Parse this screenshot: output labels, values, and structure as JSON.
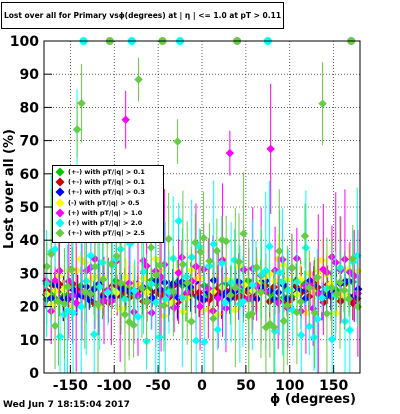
{
  "chart_data": {
    "type": "scatter",
    "title": "Lost over all for Primary vsϕ(degrees) at | η | <= 1.0 at pT > 0.11",
    "xlabel": "ϕ (degrees)",
    "ylabel": "Lost over all (%)",
    "xlim": [
      -180,
      180
    ],
    "ylim": [
      0,
      100
    ],
    "x_ticks": [
      -150,
      -100,
      -50,
      0,
      50,
      100,
      150
    ],
    "y_ticks": [
      0,
      10,
      20,
      30,
      40,
      50,
      60,
      70,
      80,
      90,
      100
    ],
    "grid": true,
    "legend_position": "left",
    "series": [
      {
        "name": "(+-) with pT/|q| > 0.1",
        "color": "#00c800",
        "baseline": 25
      },
      {
        "name": "(+-) with pT/|q| > 0.1",
        "color": "#cc0000",
        "baseline": 24
      },
      {
        "name": "(+-) with pT/|q| > 0.3",
        "color": "#0000ff",
        "baseline": 25
      },
      {
        "name": "(-) with pT/|q| > 0.5",
        "color": "#ffff00",
        "baseline": 26
      },
      {
        "name": "(+) with pT/|q| > 1.0",
        "color": "#ff00ff",
        "baseline": 26
      },
      {
        "name": "(+) with pT/|q| > 2.0",
        "color": "#00ffff",
        "baseline": 24
      },
      {
        "name": "(+-) with pT/|q| > 2.5",
        "color": "#66cc44",
        "baseline": 27
      }
    ]
  },
  "footer": {
    "datestamp": "Wed Jun  7 18:15:04 2017"
  }
}
